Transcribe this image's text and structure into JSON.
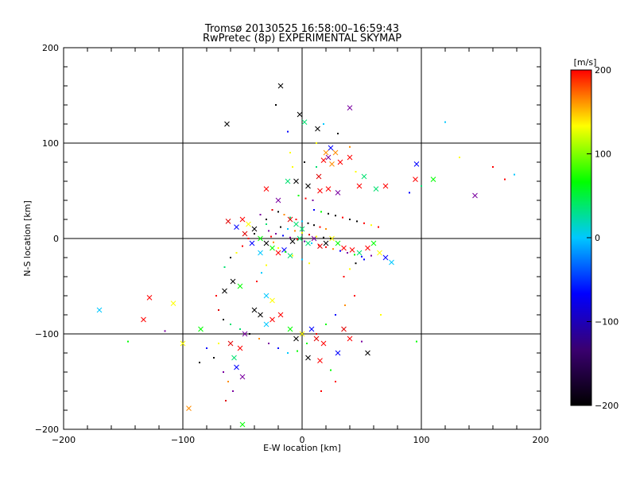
{
  "chart_data": {
    "type": "scatter",
    "title": "Tromsø 20130525 16:58:00–16:59:43",
    "subtitle": "RwPretec (8p) EXPERIMENTAL SKYMAP",
    "xlabel": "E-W location [km]",
    "ylabel": "N-S location [km]",
    "xlim": [
      -200,
      200
    ],
    "ylim": [
      -200,
      200
    ],
    "xticks": [
      "−200",
      "−100",
      "0",
      "100",
      "200"
    ],
    "yticks": [
      "200",
      "100",
      "0",
      "−100",
      "−200"
    ],
    "grid": true,
    "colorbar": {
      "label": "[m/s]",
      "range": [
        -200,
        200
      ],
      "ticks": [
        "200",
        "100",
        "0",
        "−100",
        "−200"
      ],
      "stops": [
        "#000000",
        "#3a0070",
        "#0000ff",
        "#00c8ff",
        "#00ff00",
        "#ffff00",
        "#ff0000"
      ]
    },
    "series": [
      {
        "marker": "x",
        "points": [
          [
            -18,
            160
          ],
          [
            40,
            137
          ],
          [
            2,
            122
          ],
          [
            -2,
            130
          ],
          [
            -63,
            120
          ],
          [
            13,
            115
          ],
          [
            20,
            90
          ],
          [
            24,
            95
          ],
          [
            22,
            85
          ],
          [
            28,
            90
          ],
          [
            18,
            82
          ],
          [
            32,
            80
          ],
          [
            40,
            85
          ],
          [
            25,
            78
          ],
          [
            -12,
            60
          ],
          [
            5,
            55
          ],
          [
            14,
            65
          ],
          [
            -5,
            60
          ],
          [
            15,
            50
          ],
          [
            -30,
            52
          ],
          [
            -20,
            40
          ],
          [
            22,
            52
          ],
          [
            30,
            48
          ],
          [
            48,
            55
          ],
          [
            52,
            65
          ],
          [
            62,
            52
          ],
          [
            70,
            55
          ],
          [
            96,
            78
          ],
          [
            110,
            62
          ],
          [
            95,
            62
          ],
          [
            145,
            45
          ],
          [
            -10,
            20
          ],
          [
            -5,
            15
          ],
          [
            0,
            10
          ],
          [
            -2,
            0
          ],
          [
            -8,
            -3
          ],
          [
            5,
            -5
          ],
          [
            10,
            0
          ],
          [
            15,
            -8
          ],
          [
            20,
            -5
          ],
          [
            25,
            0
          ],
          [
            30,
            -5
          ],
          [
            35,
            -10
          ],
          [
            42,
            -12
          ],
          [
            48,
            -15
          ],
          [
            55,
            -10
          ],
          [
            60,
            -5
          ],
          [
            65,
            -15
          ],
          [
            70,
            -20
          ],
          [
            75,
            -25
          ],
          [
            -62,
            18
          ],
          [
            -55,
            12
          ],
          [
            -50,
            20
          ],
          [
            -45,
            15
          ],
          [
            -40,
            10
          ],
          [
            -35,
            0
          ],
          [
            -30,
            -5
          ],
          [
            -25,
            -10
          ],
          [
            -20,
            -15
          ],
          [
            -15,
            -12
          ],
          [
            -10,
            -18
          ],
          [
            -48,
            5
          ],
          [
            -42,
            -5
          ],
          [
            -35,
            -15
          ],
          [
            -58,
            -45
          ],
          [
            -65,
            -55
          ],
          [
            -52,
            -50
          ],
          [
            -40,
            -75
          ],
          [
            -35,
            -80
          ],
          [
            -30,
            -90
          ],
          [
            -25,
            -85
          ],
          [
            -18,
            -80
          ],
          [
            -10,
            -95
          ],
          [
            -5,
            -105
          ],
          [
            0,
            -100
          ],
          [
            8,
            -95
          ],
          [
            12,
            -105
          ],
          [
            18,
            -110
          ],
          [
            -48,
            -100
          ],
          [
            -52,
            -115
          ],
          [
            -60,
            -110
          ],
          [
            -55,
            -135
          ],
          [
            -50,
            -145
          ],
          [
            -57,
            -125
          ],
          [
            -85,
            -95
          ],
          [
            -100,
            -110
          ],
          [
            -108,
            -68
          ],
          [
            -128,
            -62
          ],
          [
            -133,
            -85
          ],
          [
            -170,
            -75
          ],
          [
            -95,
            -178
          ],
          [
            -50,
            -195
          ],
          [
            15,
            -128
          ],
          [
            35,
            -95
          ],
          [
            40,
            -105
          ],
          [
            30,
            -120
          ],
          [
            55,
            -120
          ],
          [
            -30,
            -60
          ],
          [
            -25,
            -65
          ],
          [
            5,
            -125
          ]
        ]
      },
      {
        "marker": "dot",
        "points": [
          [
            -22,
            140
          ],
          [
            120,
            122
          ],
          [
            -12,
            112
          ],
          [
            18,
            120
          ],
          [
            -10,
            90
          ],
          [
            2,
            80
          ],
          [
            12,
            100
          ],
          [
            30,
            110
          ],
          [
            40,
            96
          ],
          [
            -8,
            75
          ],
          [
            12,
            75
          ],
          [
            45,
            70
          ],
          [
            -25,
            30
          ],
          [
            -20,
            28
          ],
          [
            -15,
            25
          ],
          [
            -10,
            22
          ],
          [
            -5,
            20
          ],
          [
            0,
            18
          ],
          [
            5,
            16
          ],
          [
            10,
            14
          ],
          [
            15,
            12
          ],
          [
            20,
            10
          ],
          [
            -18,
            12
          ],
          [
            -12,
            10
          ],
          [
            -6,
            8
          ],
          [
            0,
            6
          ],
          [
            6,
            4
          ],
          [
            12,
            2
          ],
          [
            18,
            1
          ],
          [
            24,
            0
          ],
          [
            -22,
            5
          ],
          [
            -16,
            3
          ],
          [
            -10,
            1
          ],
          [
            -4,
            -1
          ],
          [
            2,
            -3
          ],
          [
            8,
            -5
          ],
          [
            14,
            -7
          ],
          [
            20,
            -9
          ],
          [
            26,
            -11
          ],
          [
            32,
            -13
          ],
          [
            38,
            -15
          ],
          [
            44,
            -17
          ],
          [
            50,
            -19
          ],
          [
            -30,
            15
          ],
          [
            -28,
            8
          ],
          [
            -26,
            2
          ],
          [
            -24,
            -4
          ],
          [
            -20,
            -10
          ],
          [
            -14,
            -14
          ],
          [
            -8,
            -18
          ],
          [
            0,
            -22
          ],
          [
            6,
            -26
          ],
          [
            -35,
            25
          ],
          [
            -30,
            20
          ],
          [
            -40,
            5
          ],
          [
            -45,
            0
          ],
          [
            -50,
            -8
          ],
          [
            -55,
            -15
          ],
          [
            -60,
            -20
          ],
          [
            -65,
            -30
          ],
          [
            10,
            30
          ],
          [
            16,
            28
          ],
          [
            22,
            26
          ],
          [
            28,
            24
          ],
          [
            34,
            22
          ],
          [
            40,
            20
          ],
          [
            46,
            18
          ],
          [
            52,
            16
          ],
          [
            58,
            14
          ],
          [
            64,
            12
          ],
          [
            -3,
            45
          ],
          [
            3,
            42
          ],
          [
            9,
            40
          ],
          [
            -70,
            -75
          ],
          [
            -72,
            -60
          ],
          [
            -66,
            -85
          ],
          [
            -60,
            -90
          ],
          [
            -52,
            -95
          ],
          [
            -44,
            -100
          ],
          [
            -36,
            -105
          ],
          [
            -28,
            -110
          ],
          [
            -20,
            -115
          ],
          [
            -12,
            -120
          ],
          [
            -4,
            -118
          ],
          [
            4,
            -110
          ],
          [
            12,
            -100
          ],
          [
            20,
            -90
          ],
          [
            28,
            -80
          ],
          [
            36,
            -70
          ],
          [
            44,
            -60
          ],
          [
            -70,
            -110
          ],
          [
            -74,
            -125
          ],
          [
            -66,
            -140
          ],
          [
            -62,
            -150
          ],
          [
            -58,
            -160
          ],
          [
            -64,
            -170
          ],
          [
            -80,
            -115
          ],
          [
            -86,
            -130
          ],
          [
            -146,
            -108
          ],
          [
            -115,
            -97
          ],
          [
            178,
            67
          ],
          [
            132,
            85
          ],
          [
            160,
            75
          ],
          [
            170,
            62
          ],
          [
            100,
            55
          ],
          [
            90,
            48
          ],
          [
            96,
            -108
          ],
          [
            66,
            -80
          ],
          [
            50,
            -108
          ],
          [
            28,
            -150
          ],
          [
            24,
            -138
          ],
          [
            16,
            -160
          ],
          [
            35,
            -40
          ],
          [
            40,
            -32
          ],
          [
            45,
            -26
          ],
          [
            52,
            -22
          ],
          [
            58,
            -18
          ],
          [
            -38,
            -45
          ],
          [
            -34,
            -36
          ],
          [
            -30,
            -28
          ]
        ]
      }
    ]
  }
}
